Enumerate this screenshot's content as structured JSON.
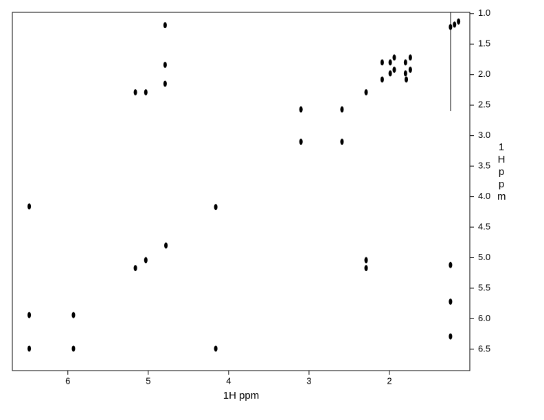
{
  "chart_data": {
    "type": "scatter",
    "x_label": "1H ppm",
    "y_label": "1H ppm",
    "xlim": [
      6.69,
      1.0
    ],
    "ylim": [
      0.98,
      6.85
    ],
    "xticks": [
      6,
      5,
      4,
      3,
      2
    ],
    "yticks": [
      {
        "value": 1,
        "label": "1.0"
      },
      1.5,
      {
        "value": 2,
        "label": "2.0"
      },
      2.5,
      {
        "value": 3,
        "label": "3.0"
      },
      3.5,
      {
        "value": 4,
        "label": "4.0"
      },
      4.5,
      {
        "value": 5,
        "label": "5.0"
      },
      5.5,
      {
        "value": 6,
        "label": "6.0"
      },
      6.5
    ],
    "color": "#000000",
    "x": [
      5.16,
      5.03,
      3.1,
      2.59,
      3.1,
      2.59,
      2.29,
      2.09,
      2.09,
      1.99,
      1.99,
      1.94,
      1.94,
      1.8,
      1.8,
      1.79,
      1.74,
      1.74,
      1.24,
      1.19,
      1.14,
      6.48,
      4.16,
      4.78,
      5.03,
      5.16,
      2.29,
      2.29,
      1.24,
      6.48,
      5.93,
      6.48,
      5.93,
      4.16,
      4.79,
      4.79,
      4.79,
      1.24,
      1.24
    ],
    "y": [
      2.29,
      2.29,
      2.57,
      2.57,
      3.1,
      3.1,
      2.29,
      1.8,
      2.08,
      1.8,
      1.98,
      1.72,
      1.92,
      1.8,
      1.98,
      2.08,
      1.72,
      1.92,
      1.22,
      1.18,
      1.13,
      4.16,
      4.17,
      4.8,
      5.04,
      5.17,
      5.04,
      5.17,
      5.12,
      5.94,
      5.94,
      6.49,
      6.49,
      6.49,
      1.19,
      1.84,
      2.15,
      5.72,
      6.29
    ]
  }
}
